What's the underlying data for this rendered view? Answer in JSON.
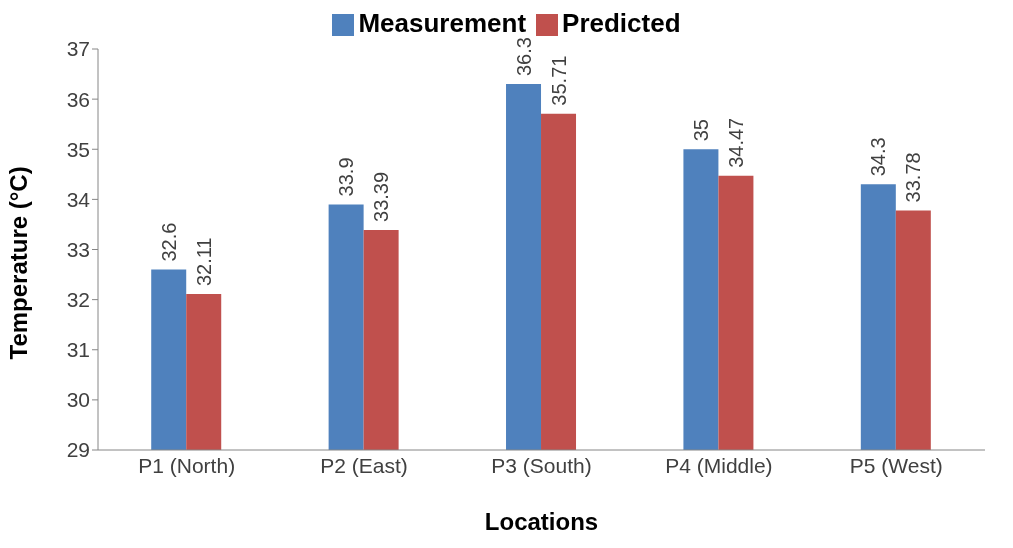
{
  "chart_data": {
    "type": "bar",
    "xlabel": "Locations",
    "ylabel": "Temperature (°C)",
    "categories": [
      "P1 (North)",
      "P2 (East)",
      "P3 (South)",
      "P4 (Middle)",
      "P5 (West)"
    ],
    "series": [
      {
        "name": "Measurement",
        "color": "#4f81bd",
        "values": [
          32.6,
          33.9,
          36.3,
          35,
          34.3
        ]
      },
      {
        "name": "Predicted",
        "color": "#c0504d",
        "values": [
          32.11,
          33.39,
          35.71,
          34.47,
          33.78
        ]
      }
    ],
    "ylim": [
      29,
      37
    ],
    "yticks": [
      29,
      30,
      31,
      32,
      33,
      34,
      35,
      36,
      37
    ],
    "grid": false,
    "legend": "top",
    "data_labels": true
  }
}
